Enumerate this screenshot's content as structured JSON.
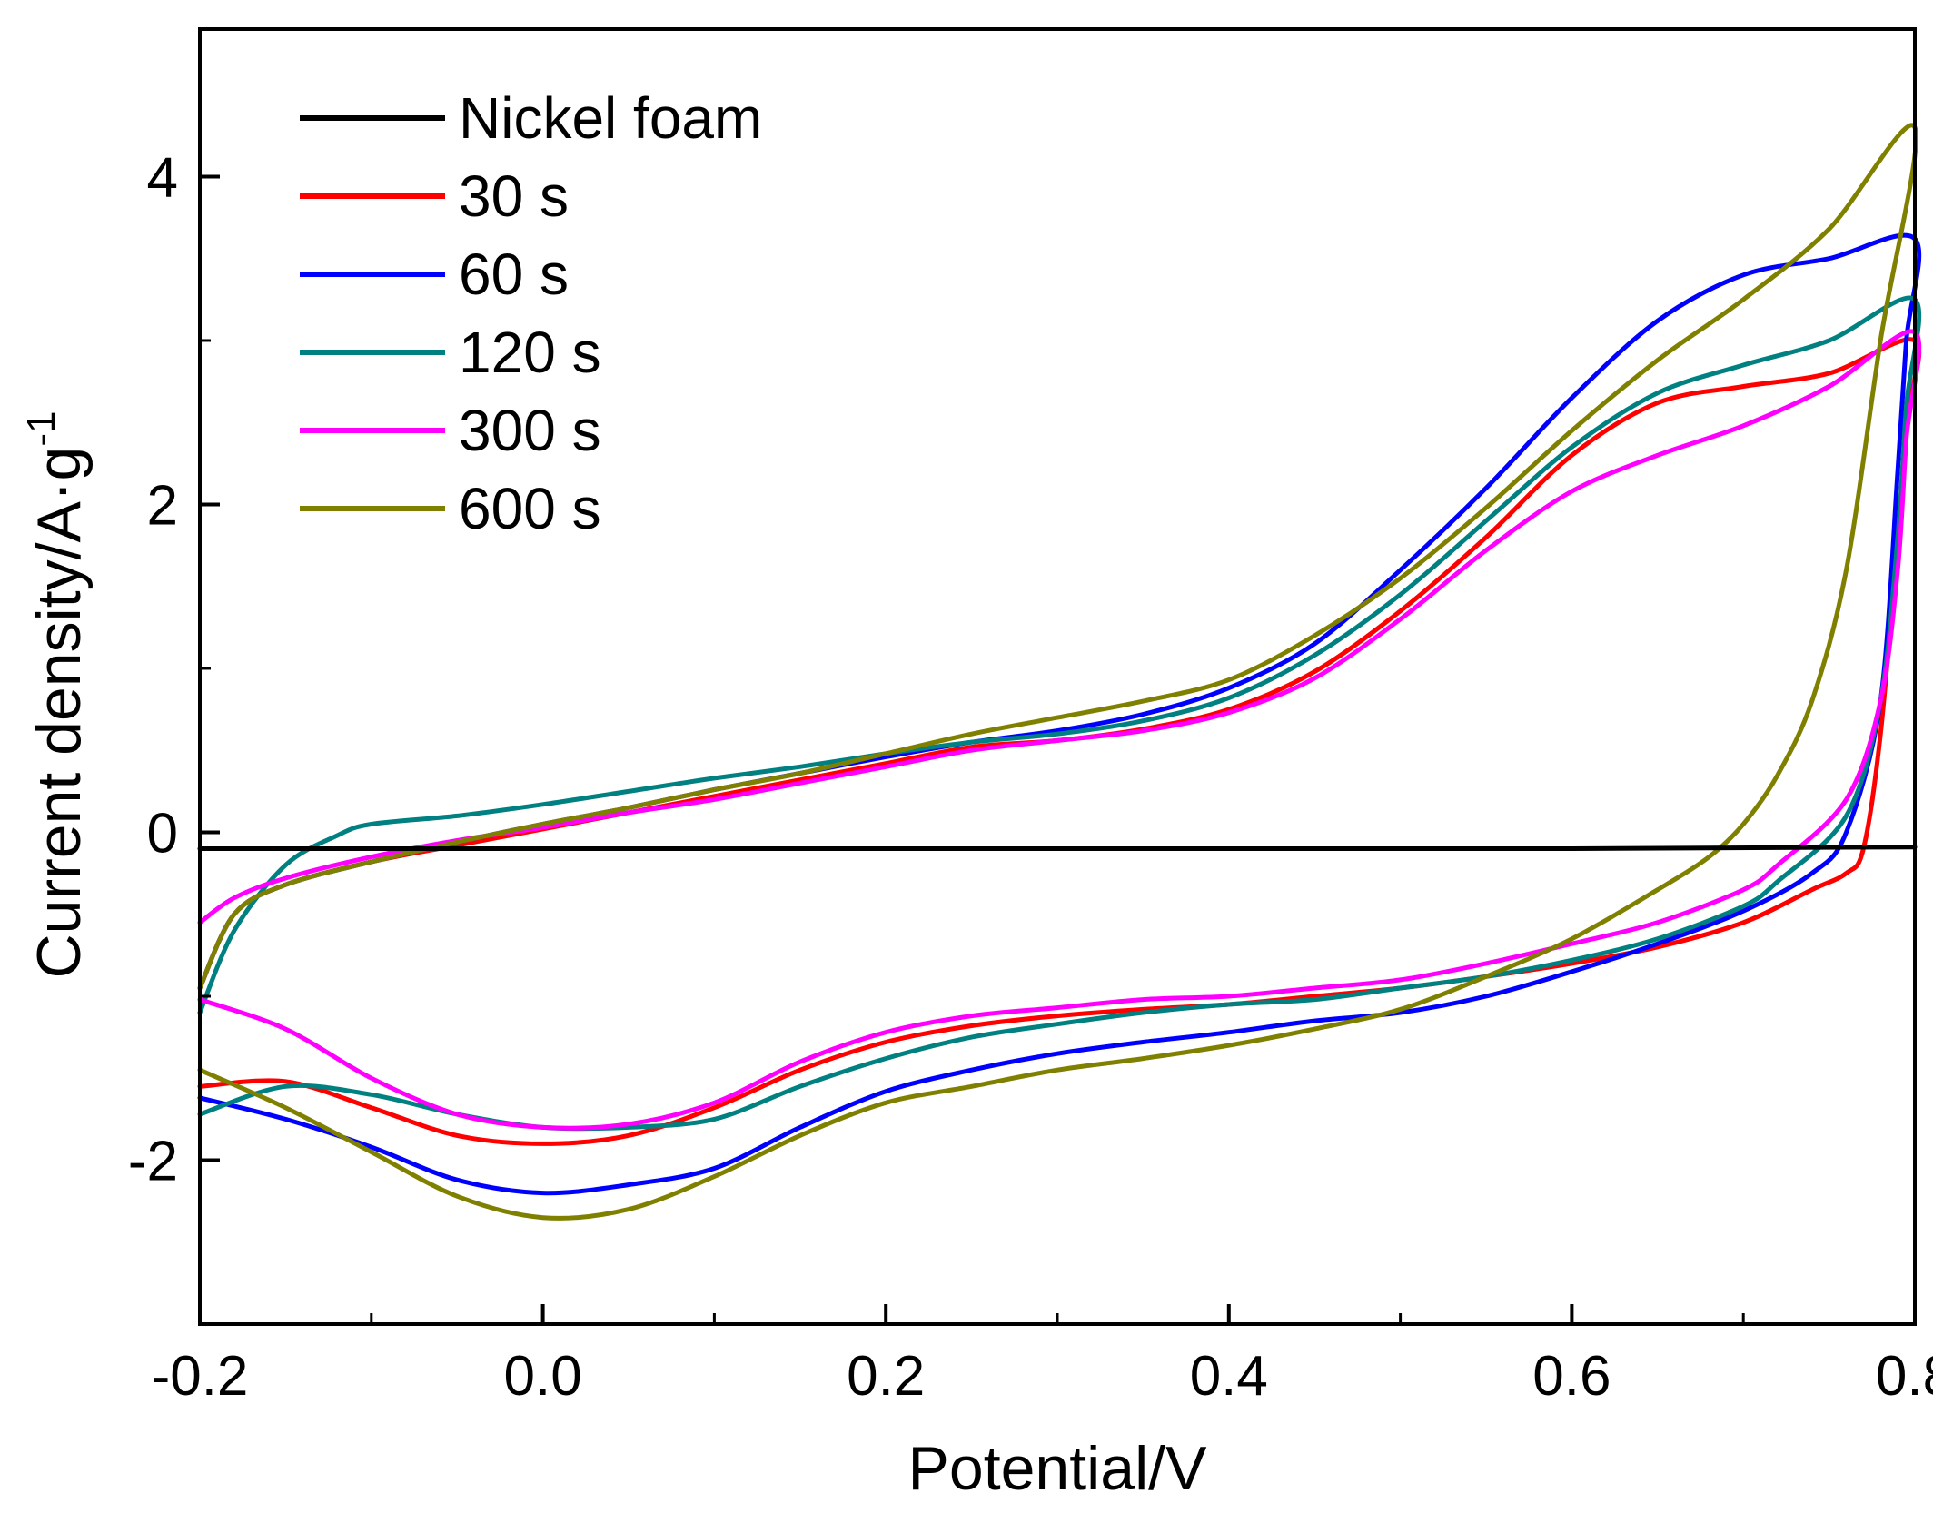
{
  "chart_data": {
    "type": "line",
    "title": "",
    "xlabel": "Potential/V",
    "ylabel_main": "Current density/A·g",
    "ylabel_sup": "-1",
    "xlim": [
      -0.2,
      0.8
    ],
    "ylim": [
      -3.0,
      4.9
    ],
    "xticks": [
      -0.2,
      0.0,
      0.2,
      0.4,
      0.6,
      0.8
    ],
    "xtick_labels": [
      "-0.2",
      "0.0",
      "0.2",
      "0.4",
      "0.6",
      "0.8"
    ],
    "yticks": [
      -2,
      0,
      2,
      4
    ],
    "ytick_labels": [
      "-2",
      "0",
      "2",
      "4"
    ],
    "grid": false,
    "legend_position": "top-left",
    "series": [
      {
        "name": "Nickel foam",
        "color": "#000000",
        "points": [
          [
            -0.2,
            -0.1
          ],
          [
            0.0,
            -0.1
          ],
          [
            0.2,
            -0.1
          ],
          [
            0.4,
            -0.1
          ],
          [
            0.6,
            -0.1
          ],
          [
            0.8,
            -0.09
          ]
        ]
      },
      {
        "name": "30 s",
        "color": "#ff0000",
        "points": [
          [
            -0.2,
            -0.95
          ],
          [
            -0.18,
            -0.5
          ],
          [
            -0.15,
            -0.32
          ],
          [
            -0.1,
            -0.18
          ],
          [
            -0.05,
            -0.08
          ],
          [
            0.0,
            0.02
          ],
          [
            0.05,
            0.12
          ],
          [
            0.1,
            0.22
          ],
          [
            0.15,
            0.32
          ],
          [
            0.2,
            0.42
          ],
          [
            0.25,
            0.52
          ],
          [
            0.3,
            0.56
          ],
          [
            0.35,
            0.63
          ],
          [
            0.4,
            0.75
          ],
          [
            0.45,
            0.98
          ],
          [
            0.5,
            1.35
          ],
          [
            0.55,
            1.8
          ],
          [
            0.6,
            2.3
          ],
          [
            0.65,
            2.62
          ],
          [
            0.7,
            2.72
          ],
          [
            0.75,
            2.8
          ],
          [
            0.8,
            3.0
          ],
          [
            0.795,
            2.5
          ],
          [
            0.79,
            1.8
          ],
          [
            0.78,
            0.6
          ],
          [
            0.77,
            -0.1
          ],
          [
            0.76,
            -0.25
          ],
          [
            0.74,
            -0.35
          ],
          [
            0.7,
            -0.55
          ],
          [
            0.65,
            -0.7
          ],
          [
            0.6,
            -0.8
          ],
          [
            0.55,
            -0.88
          ],
          [
            0.5,
            -0.95
          ],
          [
            0.45,
            -1.0
          ],
          [
            0.4,
            -1.05
          ],
          [
            0.35,
            -1.08
          ],
          [
            0.3,
            -1.12
          ],
          [
            0.25,
            -1.18
          ],
          [
            0.2,
            -1.28
          ],
          [
            0.15,
            -1.45
          ],
          [
            0.1,
            -1.68
          ],
          [
            0.05,
            -1.85
          ],
          [
            0.0,
            -1.9
          ],
          [
            -0.05,
            -1.85
          ],
          [
            -0.1,
            -1.68
          ],
          [
            -0.15,
            -1.52
          ],
          [
            -0.2,
            -1.55
          ]
        ]
      },
      {
        "name": "60 s",
        "color": "#0000ff",
        "points": [
          [
            -0.2,
            -0.95
          ],
          [
            -0.18,
            -0.5
          ],
          [
            -0.15,
            -0.32
          ],
          [
            -0.1,
            -0.18
          ],
          [
            -0.05,
            -0.06
          ],
          [
            0.0,
            0.05
          ],
          [
            0.05,
            0.15
          ],
          [
            0.1,
            0.26
          ],
          [
            0.15,
            0.36
          ],
          [
            0.2,
            0.46
          ],
          [
            0.25,
            0.55
          ],
          [
            0.3,
            0.62
          ],
          [
            0.35,
            0.72
          ],
          [
            0.4,
            0.88
          ],
          [
            0.45,
            1.15
          ],
          [
            0.5,
            1.6
          ],
          [
            0.55,
            2.1
          ],
          [
            0.6,
            2.65
          ],
          [
            0.65,
            3.12
          ],
          [
            0.7,
            3.4
          ],
          [
            0.75,
            3.5
          ],
          [
            0.8,
            3.62
          ],
          [
            0.795,
            3.0
          ],
          [
            0.79,
            2.2
          ],
          [
            0.78,
            0.8
          ],
          [
            0.76,
            0.0
          ],
          [
            0.74,
            -0.25
          ],
          [
            0.7,
            -0.48
          ],
          [
            0.65,
            -0.68
          ],
          [
            0.6,
            -0.85
          ],
          [
            0.55,
            -1.0
          ],
          [
            0.5,
            -1.1
          ],
          [
            0.45,
            -1.15
          ],
          [
            0.4,
            -1.22
          ],
          [
            0.35,
            -1.28
          ],
          [
            0.3,
            -1.35
          ],
          [
            0.25,
            -1.45
          ],
          [
            0.2,
            -1.58
          ],
          [
            0.15,
            -1.8
          ],
          [
            0.1,
            -2.05
          ],
          [
            0.05,
            -2.15
          ],
          [
            0.0,
            -2.2
          ],
          [
            -0.05,
            -2.12
          ],
          [
            -0.1,
            -1.92
          ],
          [
            -0.15,
            -1.75
          ],
          [
            -0.2,
            -1.62
          ]
        ]
      },
      {
        "name": "120 s",
        "color": "#008080",
        "points": [
          [
            -0.2,
            -1.1
          ],
          [
            -0.18,
            -0.6
          ],
          [
            -0.15,
            -0.2
          ],
          [
            -0.12,
            -0.02
          ],
          [
            -0.1,
            0.05
          ],
          [
            -0.05,
            0.1
          ],
          [
            0.0,
            0.17
          ],
          [
            0.05,
            0.25
          ],
          [
            0.1,
            0.33
          ],
          [
            0.15,
            0.4
          ],
          [
            0.2,
            0.48
          ],
          [
            0.25,
            0.55
          ],
          [
            0.3,
            0.6
          ],
          [
            0.35,
            0.68
          ],
          [
            0.4,
            0.82
          ],
          [
            0.45,
            1.08
          ],
          [
            0.5,
            1.45
          ],
          [
            0.55,
            1.9
          ],
          [
            0.6,
            2.35
          ],
          [
            0.65,
            2.68
          ],
          [
            0.7,
            2.85
          ],
          [
            0.75,
            3.0
          ],
          [
            0.8,
            3.25
          ],
          [
            0.795,
            2.6
          ],
          [
            0.79,
            1.8
          ],
          [
            0.78,
            0.8
          ],
          [
            0.76,
            0.1
          ],
          [
            0.72,
            -0.3
          ],
          [
            0.7,
            -0.45
          ],
          [
            0.65,
            -0.65
          ],
          [
            0.6,
            -0.78
          ],
          [
            0.55,
            -0.88
          ],
          [
            0.5,
            -0.95
          ],
          [
            0.45,
            -1.02
          ],
          [
            0.4,
            -1.05
          ],
          [
            0.35,
            -1.1
          ],
          [
            0.3,
            -1.17
          ],
          [
            0.25,
            -1.25
          ],
          [
            0.2,
            -1.38
          ],
          [
            0.15,
            -1.55
          ],
          [
            0.1,
            -1.75
          ],
          [
            0.05,
            -1.8
          ],
          [
            0.0,
            -1.8
          ],
          [
            -0.05,
            -1.72
          ],
          [
            -0.1,
            -1.6
          ],
          [
            -0.15,
            -1.55
          ],
          [
            -0.2,
            -1.72
          ]
        ]
      },
      {
        "name": "300 s",
        "color": "#ff00ff",
        "points": [
          [
            -0.2,
            -0.55
          ],
          [
            -0.18,
            -0.4
          ],
          [
            -0.15,
            -0.28
          ],
          [
            -0.1,
            -0.15
          ],
          [
            -0.05,
            -0.05
          ],
          [
            0.0,
            0.03
          ],
          [
            0.05,
            0.12
          ],
          [
            0.1,
            0.2
          ],
          [
            0.15,
            0.3
          ],
          [
            0.2,
            0.4
          ],
          [
            0.25,
            0.5
          ],
          [
            0.3,
            0.56
          ],
          [
            0.35,
            0.62
          ],
          [
            0.4,
            0.73
          ],
          [
            0.45,
            0.94
          ],
          [
            0.5,
            1.3
          ],
          [
            0.55,
            1.72
          ],
          [
            0.6,
            2.08
          ],
          [
            0.65,
            2.3
          ],
          [
            0.7,
            2.48
          ],
          [
            0.75,
            2.72
          ],
          [
            0.8,
            3.05
          ],
          [
            0.795,
            2.4
          ],
          [
            0.79,
            1.6
          ],
          [
            0.78,
            0.8
          ],
          [
            0.76,
            0.2
          ],
          [
            0.72,
            -0.2
          ],
          [
            0.7,
            -0.35
          ],
          [
            0.65,
            -0.55
          ],
          [
            0.6,
            -0.68
          ],
          [
            0.55,
            -0.8
          ],
          [
            0.5,
            -0.9
          ],
          [
            0.45,
            -0.95
          ],
          [
            0.4,
            -1.0
          ],
          [
            0.35,
            -1.02
          ],
          [
            0.3,
            -1.07
          ],
          [
            0.25,
            -1.12
          ],
          [
            0.2,
            -1.22
          ],
          [
            0.15,
            -1.4
          ],
          [
            0.1,
            -1.65
          ],
          [
            0.05,
            -1.78
          ],
          [
            0.0,
            -1.8
          ],
          [
            -0.05,
            -1.72
          ],
          [
            -0.1,
            -1.5
          ],
          [
            -0.15,
            -1.2
          ],
          [
            -0.2,
            -1.02
          ]
        ]
      },
      {
        "name": "600 s",
        "color": "#808000",
        "points": [
          [
            -0.2,
            -0.95
          ],
          [
            -0.18,
            -0.5
          ],
          [
            -0.15,
            -0.32
          ],
          [
            -0.1,
            -0.18
          ],
          [
            -0.05,
            -0.06
          ],
          [
            0.0,
            0.05
          ],
          [
            0.05,
            0.15
          ],
          [
            0.1,
            0.26
          ],
          [
            0.15,
            0.36
          ],
          [
            0.2,
            0.48
          ],
          [
            0.25,
            0.6
          ],
          [
            0.3,
            0.7
          ],
          [
            0.35,
            0.8
          ],
          [
            0.4,
            0.93
          ],
          [
            0.45,
            1.2
          ],
          [
            0.5,
            1.55
          ],
          [
            0.55,
            1.98
          ],
          [
            0.6,
            2.45
          ],
          [
            0.65,
            2.88
          ],
          [
            0.7,
            3.25
          ],
          [
            0.75,
            3.68
          ],
          [
            0.8,
            4.3
          ],
          [
            0.78,
            3.0
          ],
          [
            0.76,
            1.6
          ],
          [
            0.74,
            0.8
          ],
          [
            0.72,
            0.35
          ],
          [
            0.7,
            0.05
          ],
          [
            0.68,
            -0.15
          ],
          [
            0.65,
            -0.35
          ],
          [
            0.6,
            -0.65
          ],
          [
            0.55,
            -0.88
          ],
          [
            0.5,
            -1.08
          ],
          [
            0.45,
            -1.2
          ],
          [
            0.4,
            -1.3
          ],
          [
            0.35,
            -1.38
          ],
          [
            0.3,
            -1.45
          ],
          [
            0.25,
            -1.55
          ],
          [
            0.2,
            -1.65
          ],
          [
            0.15,
            -1.85
          ],
          [
            0.1,
            -2.1
          ],
          [
            0.05,
            -2.3
          ],
          [
            0.0,
            -2.35
          ],
          [
            -0.05,
            -2.22
          ],
          [
            -0.1,
            -1.95
          ],
          [
            -0.15,
            -1.68
          ],
          [
            -0.2,
            -1.45
          ]
        ]
      }
    ]
  }
}
